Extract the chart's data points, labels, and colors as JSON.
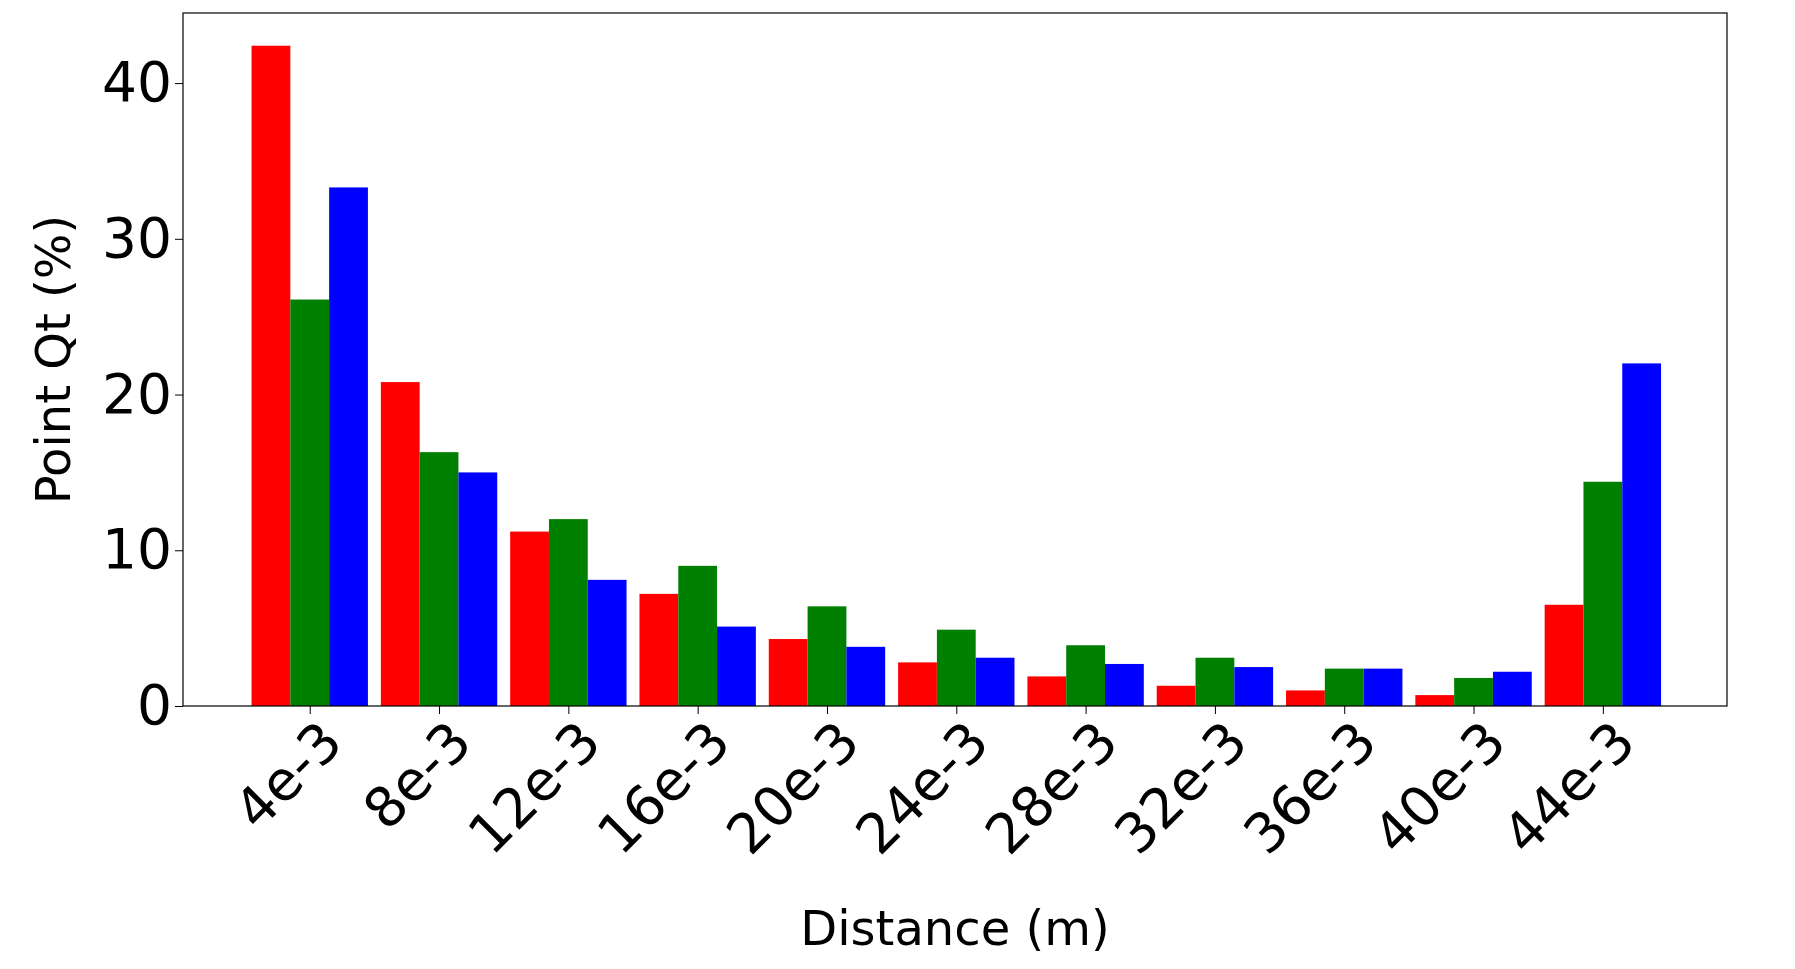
{
  "chart_data": {
    "type": "bar",
    "xlabel": "Distance (m)",
    "ylabel": "Point Qt (%)",
    "categories": [
      "4e-3",
      "8e-3",
      "12e-3",
      "16e-3",
      "20e-3",
      "24e-3",
      "28e-3",
      "32e-3",
      "36e-3",
      "40e-3",
      "44e-3"
    ],
    "series": [
      {
        "color": "#ff0000",
        "values": [
          42.4,
          20.8,
          11.2,
          7.2,
          4.3,
          2.8,
          1.9,
          1.3,
          1.0,
          0.7,
          6.5
        ]
      },
      {
        "color": "#008000",
        "values": [
          26.1,
          16.3,
          12.0,
          9.0,
          6.4,
          4.9,
          3.9,
          3.1,
          2.4,
          1.8,
          14.4
        ]
      },
      {
        "color": "#0000ff",
        "values": [
          33.3,
          15.0,
          8.1,
          5.1,
          3.8,
          3.1,
          2.7,
          2.5,
          2.4,
          2.2,
          22.0
        ]
      }
    ],
    "ylim": [
      0,
      44.5
    ],
    "yticks": [
      0,
      10,
      20,
      30,
      40
    ]
  }
}
